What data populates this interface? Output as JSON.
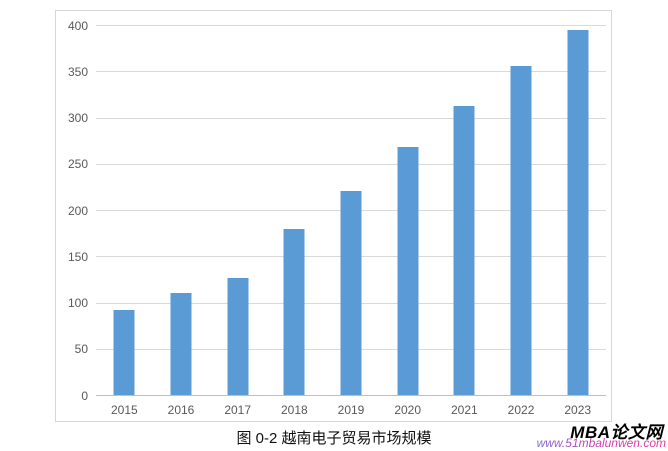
{
  "chart_data": {
    "type": "bar",
    "categories": [
      "2015",
      "2016",
      "2017",
      "2018",
      "2019",
      "2020",
      "2021",
      "2022",
      "2023"
    ],
    "values": [
      92,
      110,
      127,
      180,
      221,
      268,
      312,
      356,
      395
    ],
    "title": "图 0-2 越南电子贸易市场规模",
    "xlabel": "",
    "ylabel": "",
    "ylim": [
      0,
      400
    ],
    "ytick_interval": 50,
    "yticks": [
      0,
      50,
      100,
      150,
      200,
      250,
      300,
      350,
      400
    ],
    "grid": "horizontal",
    "legend": "none",
    "bar_color": "#5b9bd5",
    "gridline_color": "#d9d9d9",
    "axis_line_color": "#bfbfbf",
    "tick_label_color": "#595959"
  },
  "caption": {
    "text": "图 0-2 越南电子贸易市场规模"
  },
  "watermark": {
    "brand": "MBA论文网",
    "url": "www.51mbalunwen.com",
    "brand_color": "#000000",
    "url_color_start": "#7d6ad4",
    "url_color_end": "#e8399b"
  }
}
